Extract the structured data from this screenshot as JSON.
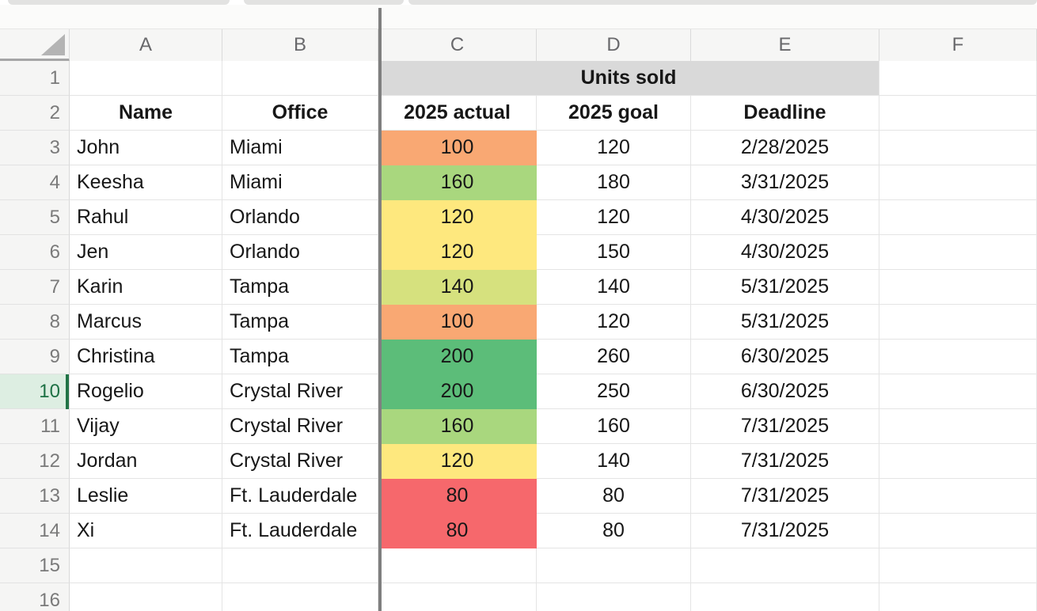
{
  "sheet": {
    "column_headers": [
      "A",
      "B",
      "C",
      "D",
      "E",
      "F"
    ],
    "visible_rows": 16,
    "selected_row": 10,
    "title_row": {
      "row": 1,
      "text": "Units sold",
      "spans_columns": "C:E",
      "bg": "#d9d9d9"
    },
    "header_row": {
      "row": 2,
      "name": "Name",
      "office": "Office",
      "actual": "2025 actual",
      "goal": "2025 goal",
      "deadline": "Deadline"
    },
    "data_rows": [
      {
        "row": 3,
        "name": "John",
        "office": "Miami",
        "actual": "100",
        "actual_bg": "#F9A873",
        "goal": "120",
        "deadline": "2/28/2025"
      },
      {
        "row": 4,
        "name": "Keesha",
        "office": "Miami",
        "actual": "160",
        "actual_bg": "#A9D77E",
        "goal": "180",
        "deadline": "3/31/2025"
      },
      {
        "row": 5,
        "name": "Rahul",
        "office": "Orlando",
        "actual": "120",
        "actual_bg": "#FEE87E",
        "goal": "120",
        "deadline": "4/30/2025"
      },
      {
        "row": 6,
        "name": "Jen",
        "office": "Orlando",
        "actual": "120",
        "actual_bg": "#FEE87E",
        "goal": "150",
        "deadline": "4/30/2025"
      },
      {
        "row": 7,
        "name": "Karin",
        "office": "Tampa",
        "actual": "140",
        "actual_bg": "#D6E17E",
        "goal": "140",
        "deadline": "5/31/2025"
      },
      {
        "row": 8,
        "name": "Marcus",
        "office": "Tampa",
        "actual": "100",
        "actual_bg": "#F9A873",
        "goal": "120",
        "deadline": "5/31/2025"
      },
      {
        "row": 9,
        "name": "Christina",
        "office": "Tampa",
        "actual": "200",
        "actual_bg": "#5CBD79",
        "goal": "260",
        "deadline": "6/30/2025"
      },
      {
        "row": 10,
        "name": "Rogelio",
        "office": "Crystal River",
        "actual": "200",
        "actual_bg": "#5CBD79",
        "goal": "250",
        "deadline": "6/30/2025"
      },
      {
        "row": 11,
        "name": "Vijay",
        "office": "Crystal River",
        "actual": "160",
        "actual_bg": "#A9D77E",
        "goal": "160",
        "deadline": "7/31/2025"
      },
      {
        "row": 12,
        "name": "Jordan",
        "office": "Crystal River",
        "actual": "120",
        "actual_bg": "#FEE87E",
        "goal": "140",
        "deadline": "7/31/2025"
      },
      {
        "row": 13,
        "name": "Leslie",
        "office": "Ft. Lauderdale",
        "actual": "80",
        "actual_bg": "#F6686C",
        "goal": "80",
        "deadline": "7/31/2025"
      },
      {
        "row": 14,
        "name": "Xi",
        "office": "Ft. Lauderdale",
        "actual": "80",
        "actual_bg": "#F6686C",
        "goal": "80",
        "deadline": "7/31/2025"
      }
    ],
    "colors": {
      "conditional_scale": {
        "80": "#F6686C",
        "100": "#F9A873",
        "120": "#FEE87E",
        "140": "#D6E17E",
        "160": "#A9D77E",
        "200": "#5CBD79"
      },
      "merged_header_bg": "#D9D9D9",
      "selected_row_header_bg": "#DDEEE2",
      "selected_row_header_text": "#1E7145",
      "selected_row_accent": "#217346",
      "pane_divider": "#7F7F7F"
    }
  }
}
